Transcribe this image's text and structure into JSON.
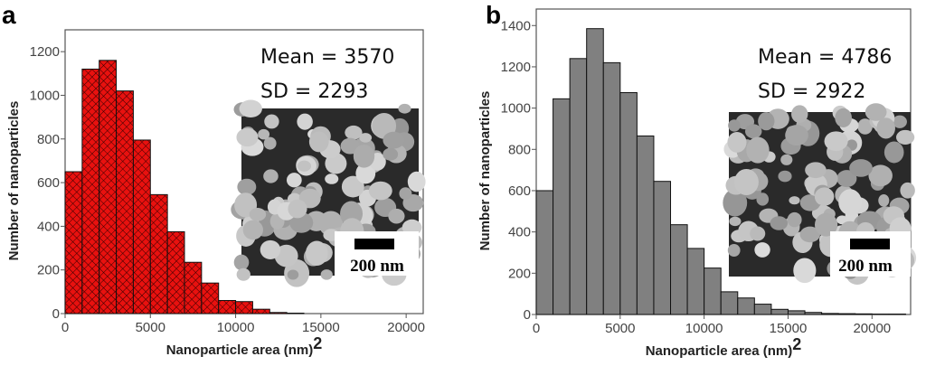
{
  "chart_data": [
    {
      "type": "bar",
      "panel_label": "a",
      "xlabel": "Nanoparticle area (nm)",
      "xlabel_sup": "2",
      "ylabel": "Number of nanoparticles",
      "bin_width": 1000,
      "bin_starts": [
        0,
        1000,
        2000,
        3000,
        4000,
        5000,
        6000,
        7000,
        8000,
        9000,
        10000,
        11000,
        12000,
        13000
      ],
      "values": [
        650,
        1120,
        1160,
        1020,
        795,
        545,
        375,
        235,
        140,
        60,
        55,
        20,
        5,
        2
      ],
      "xlim": [
        0,
        21000
      ],
      "ylim": [
        0,
        1300
      ],
      "xticks": [
        0,
        5000,
        10000,
        15000,
        20000
      ],
      "xtick_labels": [
        "0",
        "5000",
        "10000",
        "15000",
        "20000"
      ],
      "yticks": [
        0,
        200,
        400,
        600,
        800,
        1000,
        1200
      ],
      "ytick_labels": [
        "0",
        "200",
        "400",
        "600",
        "800",
        "1000",
        "1200"
      ],
      "annotations": [
        "Mean = 3570",
        "SD = 2293"
      ],
      "inset_scale_bar": "200 nm",
      "bar_color": "#e8110f",
      "bar_pattern": "crosshatch"
    },
    {
      "type": "bar",
      "panel_label": "b",
      "xlabel": "Nanoparticle area (nm)",
      "xlabel_sup": "2",
      "ylabel": "Number of nanoparticles",
      "bin_width": 1000,
      "bin_starts": [
        0,
        1000,
        2000,
        3000,
        4000,
        5000,
        6000,
        7000,
        8000,
        9000,
        10000,
        11000,
        12000,
        13000,
        14000,
        15000,
        16000,
        17000,
        18000,
        19000,
        20000,
        21000
      ],
      "values": [
        600,
        1045,
        1240,
        1385,
        1220,
        1075,
        865,
        645,
        435,
        320,
        225,
        110,
        80,
        50,
        25,
        18,
        10,
        5,
        4,
        3,
        2,
        2
      ],
      "xlim": [
        0,
        22300
      ],
      "ylim": [
        0,
        1480
      ],
      "xticks": [
        0,
        5000,
        10000,
        15000,
        20000
      ],
      "xtick_labels": [
        "0",
        "5000",
        "10000",
        "15000",
        "20000"
      ],
      "yticks": [
        0,
        200,
        400,
        600,
        800,
        1000,
        1200,
        1400
      ],
      "ytick_labels": [
        "0",
        "200",
        "400",
        "600",
        "800",
        "1000",
        "1200",
        "1400"
      ],
      "annotations": [
        "Mean = 4786",
        "SD = 2922"
      ],
      "inset_scale_bar": "200 nm",
      "bar_color": "#808080",
      "bar_pattern": "solid"
    }
  ]
}
